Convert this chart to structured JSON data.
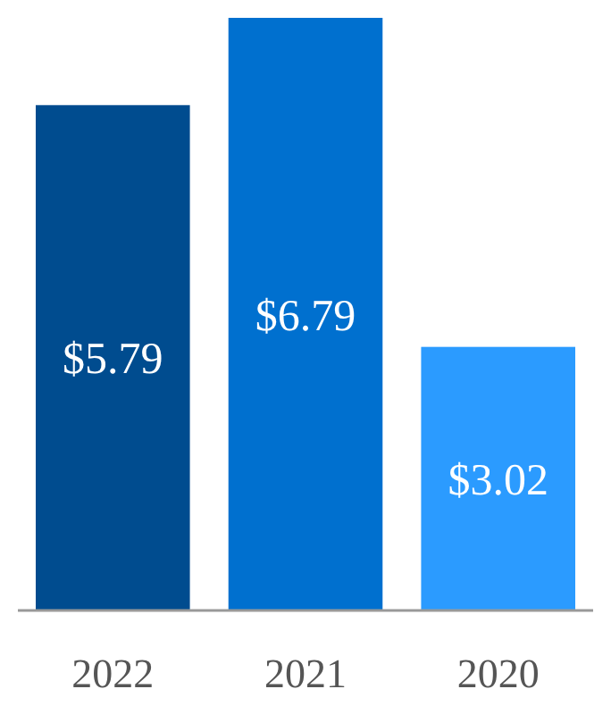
{
  "chart_data": {
    "type": "bar",
    "categories": [
      "2022",
      "2021",
      "2020"
    ],
    "values": [
      5.79,
      6.79,
      3.02
    ],
    "colors": [
      "#004c8f",
      "#0070cf",
      "#2b9bff"
    ],
    "value_labels": [
      "$5.79",
      "$6.79",
      "$3.02"
    ]
  }
}
